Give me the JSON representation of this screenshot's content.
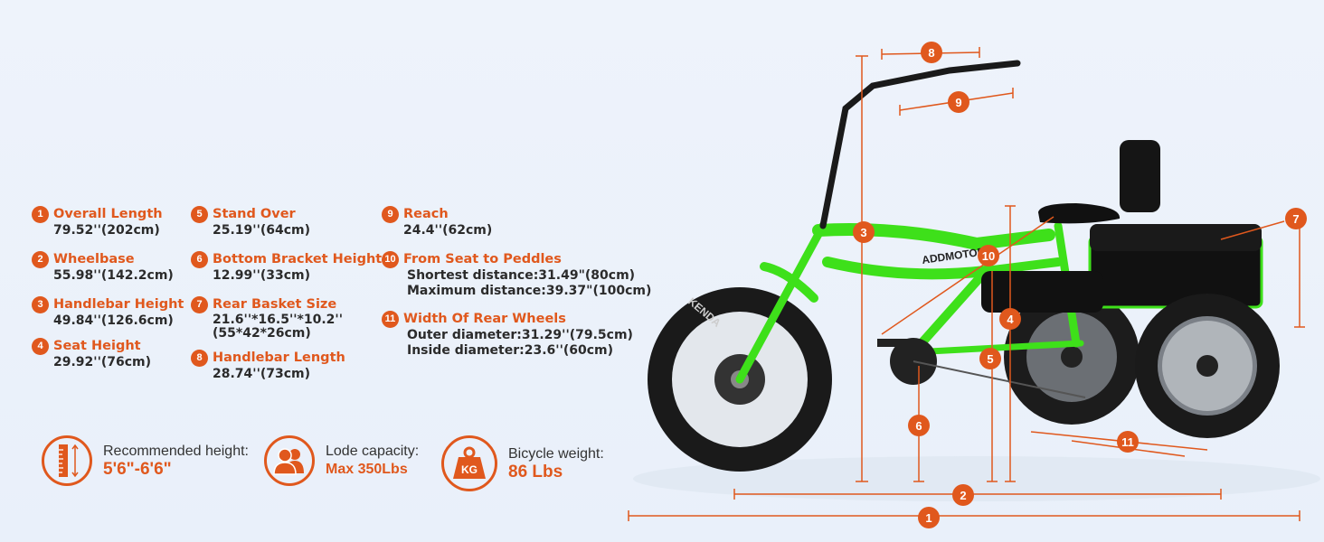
{
  "specs": [
    {
      "n": "1",
      "title": "Overall Length",
      "lines": [
        "79.52''(202cm)"
      ]
    },
    {
      "n": "2",
      "title": "Wheelbase",
      "lines": [
        "55.98''(142.2cm)"
      ]
    },
    {
      "n": "3",
      "title": "Handlebar Height",
      "lines": [
        "49.84''(126.6cm)"
      ]
    },
    {
      "n": "4",
      "title": "Seat Height",
      "lines": [
        "29.92''(76cm)"
      ]
    },
    {
      "n": "5",
      "title": "Stand Over",
      "lines": [
        "25.19''(64cm)"
      ]
    },
    {
      "n": "6",
      "title": "Bottom Bracket Height",
      "lines": [
        "12.99''(33cm)"
      ]
    },
    {
      "n": "7",
      "title": "Rear Basket Size",
      "lines": [
        "21.6''*16.5''*10.2''",
        "(55*42*26cm)"
      ]
    },
    {
      "n": "8",
      "title": "Handlebar Length",
      "lines": [
        "28.74''(73cm)"
      ]
    },
    {
      "n": "9",
      "title": "Reach",
      "lines": [
        "24.4''(62cm)"
      ]
    },
    {
      "n": "10",
      "title": "From Seat to Peddles",
      "lines": [
        "Shortest distance:31.49\"(80cm)",
        "Maximum distance:39.37\"(100cm)"
      ]
    },
    {
      "n": "11",
      "title": "Width Of Rear Wheels",
      "lines": [
        "Outer diameter:31.29''(79.5cm)",
        "Inside diameter:23.6''(60cm)"
      ]
    }
  ],
  "features": [
    {
      "icon": "ruler-height-icon",
      "label": "Recommended height:",
      "value": "5'6\"-6'6\""
    },
    {
      "icon": "users-icon",
      "label": "Lode capacity:",
      "value": "Max 350Lbs"
    },
    {
      "icon": "kg-weight-icon",
      "label": "Bicycle weight:",
      "value": "86 Lbs",
      "badge": "KG"
    }
  ],
  "bike": {
    "brand": "ADDMOTOR",
    "tire_brand": "KENDA"
  },
  "colors": {
    "accent": "#e0581d",
    "frame": "#3ee01a",
    "background": "#eef3fb"
  }
}
